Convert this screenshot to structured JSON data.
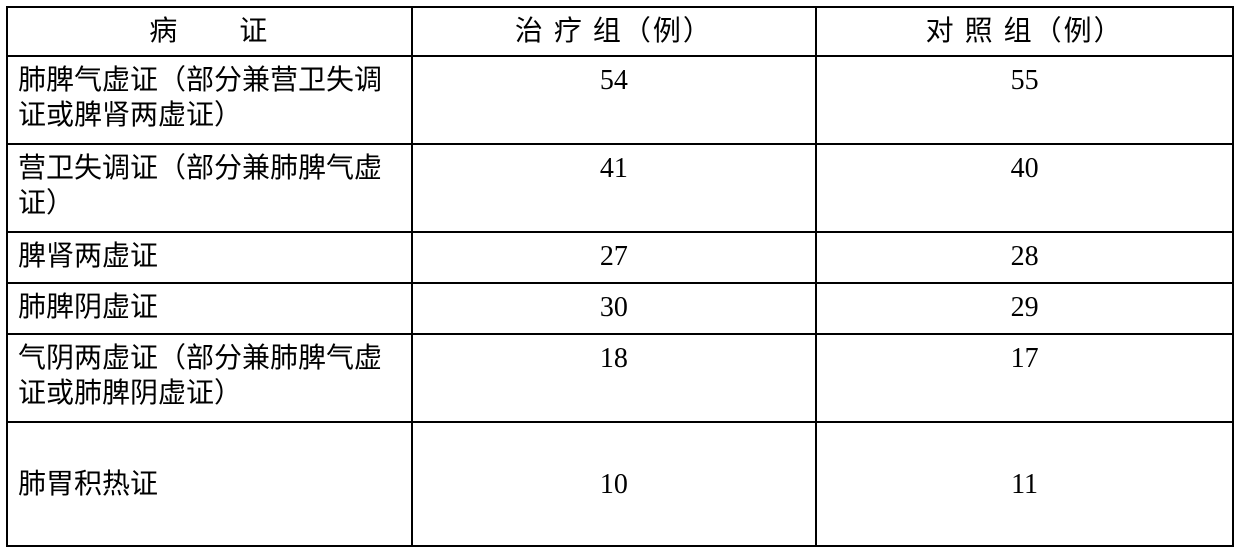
{
  "table": {
    "type": "table",
    "font_size_pt": 21,
    "font_family": "SimSun",
    "border_color": "#000000",
    "background_color": "#ffffff",
    "text_color": "#000000",
    "columns": [
      {
        "label": "病　　证",
        "align": "left",
        "width_pct": 33
      },
      {
        "label": "治 疗 组（例）",
        "align": "center",
        "width_pct": 33
      },
      {
        "label": "对 照 组（例）",
        "align": "center",
        "width_pct": 34
      }
    ],
    "rows": [
      {
        "syndrome": "肺脾气虚证（部分兼营卫失调证或脾肾两虚证）",
        "treatment": "54",
        "control": "55"
      },
      {
        "syndrome": "营卫失调证（部分兼肺脾气虚证）",
        "treatment": "41",
        "control": "40"
      },
      {
        "syndrome": "脾肾两虚证",
        "treatment": "27",
        "control": "28"
      },
      {
        "syndrome": "肺脾阴虚证",
        "treatment": "30",
        "control": "29"
      },
      {
        "syndrome": "气阴两虚证（部分兼肺脾气虚证或肺脾阴虚证）",
        "treatment": "18",
        "control": "17"
      },
      {
        "syndrome": "肺胃积热证",
        "treatment": "10",
        "control": "11"
      }
    ]
  }
}
